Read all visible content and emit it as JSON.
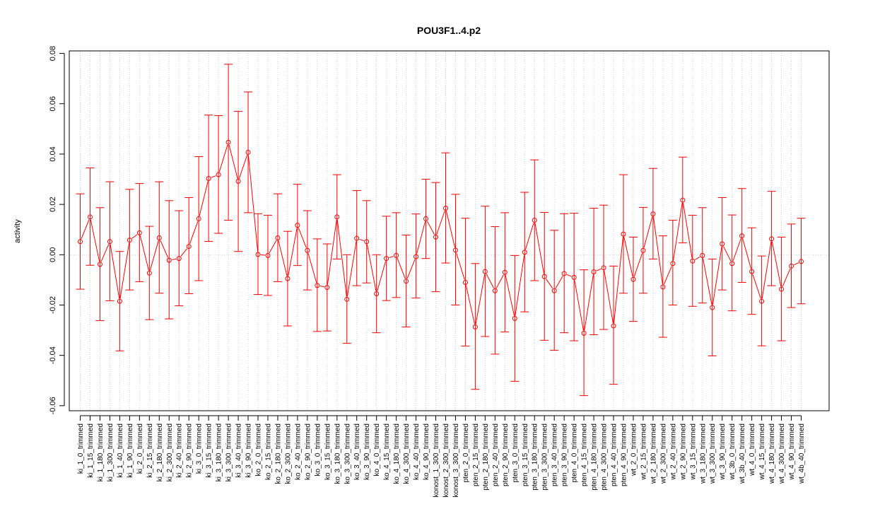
{
  "chart_data": {
    "type": "line",
    "title": "POU3F1..4.p2",
    "xlabel": "",
    "ylabel": "activity",
    "ylim": [
      -0.062,
      0.081
    ],
    "yticks": [
      -0.06,
      -0.04,
      -0.02,
      0.0,
      0.02,
      0.04,
      0.06,
      0.08
    ],
    "ytick_labels": [
      "-0.06",
      "-0.04",
      "-0.02",
      "0.00",
      "0.02",
      "0.04",
      "0.06",
      "0.08"
    ],
    "grid": true,
    "reference_line": 0.0,
    "series_color": "#ff0000",
    "grid_color": "#d3d3d3",
    "categories": [
      "ki_1_0_trimmed",
      "ki_1_15_trimmed",
      "ki_1_180_trimmed",
      "ki_1_300_trimmed",
      "ki_1_40_trimmed",
      "ki_1_90_trimmed",
      "ki_2_0_trimmed",
      "ki_2_15_trimmed",
      "ki_2_180_trimmed",
      "ki_2_300_trimmed",
      "ki_2_40_trimmed",
      "ki_2_90_trimmed",
      "ki_3_0_trimmed",
      "ki_3_15_trimmed",
      "ki_3_180_trimmed",
      "ki_3_300_trimmed",
      "ki_3_40_trimmed",
      "ki_3_90_trimmed",
      "ko_2_0_trimmed",
      "ko_2_15_trimmed",
      "ko_2_180_trimmed",
      "ko_2_300_trimmed",
      "ko_2_40_trimmed",
      "ko_2_90_trimmed",
      "ko_3_0_trimmed",
      "ko_3_15_trimmed",
      "ko_3_180_trimmed",
      "ko_3_300_trimmed",
      "ko_3_40_trimmed",
      "ko_3_90_trimmed",
      "ko_4_0_trimmed",
      "ko_4_15_trimmed",
      "ko_4_180_trimmed",
      "ko_4_300_trimmed",
      "ko_4_40_trimmed",
      "ko_4_90_trimmed",
      "konost_1_300_trimmed",
      "konost_2_300_trimmed",
      "konost_3_300_trimmed",
      "pten_2_0_trimmed",
      "pten_2_15_trimmed",
      "pten_2_180_trimmed",
      "pten_2_40_trimmed",
      "pten_2_90_trimmed",
      "pten_3_0_trimmed",
      "pten_3_15_trimmed",
      "pten_3_180_trimmed",
      "pten_3_300_trimmed",
      "pten_3_40_trimmed",
      "pten_3_90_trimmed",
      "pten_4_0_trimmed",
      "pten_4_15_trimmed",
      "pten_4_180_trimmed",
      "pten_4_300_trimmed",
      "pten_4_40_trimmed",
      "pten_4_90_trimmed",
      "wt_2_0_trimmed",
      "wt_2_15_trimmed",
      "wt_2_180_trimmed",
      "wt_2_300_trimmed",
      "wt_2_40_trimmed",
      "wt_2_90_trimmed",
      "wt_3_15_trimmed",
      "wt_3_180_trimmed",
      "wt_3_300_trimmed",
      "wt_3_90_trimmed",
      "wt_3b_0_trimmed",
      "wt_3b_40_trimmed",
      "wt_4_0_trimmed",
      "wt_4_15_trimmed",
      "wt_4_180_trimmed",
      "wt_4_300_trimmed",
      "wt_4_90_trimmed",
      "wt_4b_40_trimmed"
    ],
    "series": [
      {
        "values": [
          0.0052,
          0.015,
          -0.0038,
          0.0052,
          -0.0185,
          0.0058,
          0.0087,
          -0.0073,
          0.0067,
          -0.0022,
          -0.0015,
          0.0033,
          0.0143,
          0.0303,
          0.0318,
          0.0447,
          0.0292,
          0.0407,
          0.0001,
          -0.0003,
          0.0067,
          -0.0095,
          0.0117,
          0.0017,
          -0.0122,
          -0.013,
          0.015,
          -0.0177,
          0.0065,
          0.0052,
          -0.0155,
          -0.0015,
          -0.0003,
          -0.0105,
          -0.0008,
          0.0143,
          0.007,
          0.0185,
          0.0018,
          -0.011,
          -0.0287,
          -0.0067,
          -0.0143,
          -0.007,
          -0.0253,
          0.001,
          0.0137,
          -0.0087,
          -0.0143,
          -0.0075,
          -0.009,
          -0.0312,
          -0.0068,
          -0.0052,
          -0.0283,
          0.0082,
          -0.0098,
          0.0017,
          0.0162,
          -0.0128,
          -0.0035,
          0.0217,
          -0.0025,
          -0.0003,
          -0.021,
          0.0043,
          -0.0035,
          0.0075,
          -0.0067,
          -0.0185,
          0.0063,
          -0.0137,
          -0.0045,
          -0.0027
        ],
        "upper": [
          0.0242,
          0.0345,
          0.0187,
          0.029,
          0.0013,
          0.026,
          0.0283,
          0.0113,
          0.029,
          0.0215,
          0.0175,
          0.0227,
          0.039,
          0.0555,
          0.0553,
          0.0757,
          0.057,
          0.0647,
          0.0163,
          0.0157,
          0.0242,
          0.0093,
          0.028,
          0.0175,
          0.0063,
          0.0043,
          0.0318,
          0.0,
          0.0255,
          0.0215,
          0.0,
          0.0153,
          0.0167,
          0.0078,
          0.0162,
          0.03,
          0.0287,
          0.0405,
          0.024,
          0.0145,
          -0.0035,
          0.0193,
          0.0112,
          0.0167,
          -0.0003,
          0.0248,
          0.0377,
          0.0168,
          0.0097,
          0.0163,
          0.0165,
          -0.006,
          0.0185,
          0.0197,
          -0.0045,
          0.0318,
          0.007,
          0.0188,
          0.0343,
          0.0075,
          0.0137,
          0.0388,
          0.0157,
          0.0187,
          -0.0017,
          0.0227,
          0.0158,
          0.0263,
          0.0107,
          -0.0005,
          0.0252,
          0.007,
          0.0122,
          0.0145
        ],
        "lower": [
          -0.0137,
          -0.0042,
          -0.0262,
          -0.0183,
          -0.0382,
          -0.014,
          -0.0107,
          -0.0258,
          -0.0153,
          -0.0255,
          -0.0203,
          -0.0155,
          -0.0103,
          0.0053,
          0.0085,
          0.0137,
          0.0013,
          0.0167,
          -0.0158,
          -0.0162,
          -0.0107,
          -0.0283,
          -0.0043,
          -0.014,
          -0.0305,
          -0.0303,
          -0.0017,
          -0.0352,
          -0.0123,
          -0.0112,
          -0.031,
          -0.0182,
          -0.017,
          -0.0287,
          -0.0172,
          -0.0015,
          -0.0147,
          -0.0033,
          -0.02,
          -0.0363,
          -0.0535,
          -0.0325,
          -0.0395,
          -0.0307,
          -0.0503,
          -0.0227,
          -0.0103,
          -0.034,
          -0.038,
          -0.031,
          -0.0342,
          -0.056,
          -0.0318,
          -0.0297,
          -0.0515,
          -0.0153,
          -0.0265,
          -0.0153,
          -0.0017,
          -0.0328,
          -0.02,
          0.0047,
          -0.0205,
          -0.0192,
          -0.0402,
          -0.014,
          -0.0223,
          -0.011,
          -0.0237,
          -0.0362,
          -0.0123,
          -0.0342,
          -0.021,
          -0.0195
        ]
      }
    ]
  }
}
